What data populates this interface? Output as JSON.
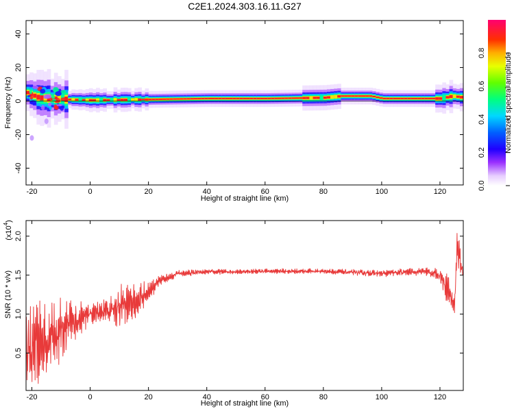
{
  "title": "C2E1.2024.303.16.11.G27",
  "chart_data": [
    {
      "type": "heatmap",
      "xlabel": "Height of straight line (km)",
      "ylabel": "Frequency (Hz)",
      "xlim": [
        -22,
        128
      ],
      "ylim": [
        -50,
        48
      ],
      "x_ticks": [
        -20,
        0,
        20,
        40,
        60,
        80,
        100,
        120
      ],
      "y_ticks": [
        -40,
        -20,
        0,
        20,
        40
      ],
      "colorbar": {
        "label": "Normalized spectral amplitude",
        "range": [
          0,
          1
        ],
        "ticks": [
          "0.0",
          "0.2",
          "0.4",
          "0.6",
          "0.8"
        ],
        "tick_values": [
          0,
          0.2,
          0.4,
          0.6,
          0.8
        ]
      },
      "ridge": [
        {
          "x": -22,
          "y": 5
        },
        {
          "x": -18,
          "y": 2
        },
        {
          "x": -14,
          "y": 1.5
        },
        {
          "x": -8,
          "y": 1
        },
        {
          "x": 0,
          "y": 0.5
        },
        {
          "x": 20,
          "y": 1
        },
        {
          "x": 40,
          "y": 1.5
        },
        {
          "x": 60,
          "y": 1.5
        },
        {
          "x": 80,
          "y": 2
        },
        {
          "x": 86,
          "y": 3
        },
        {
          "x": 96,
          "y": 3
        },
        {
          "x": 100,
          "y": 1.5
        },
        {
          "x": 120,
          "y": 1.5
        },
        {
          "x": 124,
          "y": 3
        },
        {
          "x": 128,
          "y": 2
        }
      ],
      "outliers": [
        {
          "x": -20,
          "y": -22
        },
        {
          "x": -15,
          "y": -12
        }
      ]
    },
    {
      "type": "line",
      "xlabel": "Height of straight line (km)",
      "ylabel": "SNR (10 * v/v)",
      "y_multiplier": "(x10^4)",
      "xlim": [
        -22,
        128
      ],
      "ylim": [
        0.02,
        2.2
      ],
      "x_ticks": [
        -20,
        0,
        20,
        40,
        60,
        80,
        100,
        120
      ],
      "y_ticks": [
        0.5,
        1.0,
        1.5,
        2.0
      ],
      "series": [
        {
          "color": "#e83a3a",
          "envelope": [
            {
              "x": -22,
              "mean": 0.55,
              "amp": 0.45
            },
            {
              "x": -18,
              "mean": 0.6,
              "amp": 0.5
            },
            {
              "x": -12,
              "mean": 0.75,
              "amp": 0.45
            },
            {
              "x": -6,
              "mean": 0.9,
              "amp": 0.25
            },
            {
              "x": 0,
              "mean": 1.0,
              "amp": 0.12
            },
            {
              "x": 5,
              "mean": 1.05,
              "amp": 0.15
            },
            {
              "x": 10,
              "mean": 1.1,
              "amp": 0.25
            },
            {
              "x": 16,
              "mean": 1.15,
              "amp": 0.22
            },
            {
              "x": 20,
              "mean": 1.3,
              "amp": 0.12
            },
            {
              "x": 25,
              "mean": 1.45,
              "amp": 0.06
            },
            {
              "x": 30,
              "mean": 1.52,
              "amp": 0.04
            },
            {
              "x": 40,
              "mean": 1.54,
              "amp": 0.03
            },
            {
              "x": 60,
              "mean": 1.55,
              "amp": 0.03
            },
            {
              "x": 80,
              "mean": 1.55,
              "amp": 0.03
            },
            {
              "x": 100,
              "mean": 1.52,
              "amp": 0.04
            },
            {
              "x": 115,
              "mean": 1.55,
              "amp": 0.05
            },
            {
              "x": 120,
              "mean": 1.5,
              "amp": 0.08
            },
            {
              "x": 123,
              "mean": 1.3,
              "amp": 0.2
            },
            {
              "x": 125,
              "mean": 1.1,
              "amp": 0.1
            },
            {
              "x": 126,
              "mean": 1.9,
              "amp": 0.3
            },
            {
              "x": 128,
              "mean": 1.5,
              "amp": 0.05
            }
          ]
        }
      ]
    }
  ]
}
